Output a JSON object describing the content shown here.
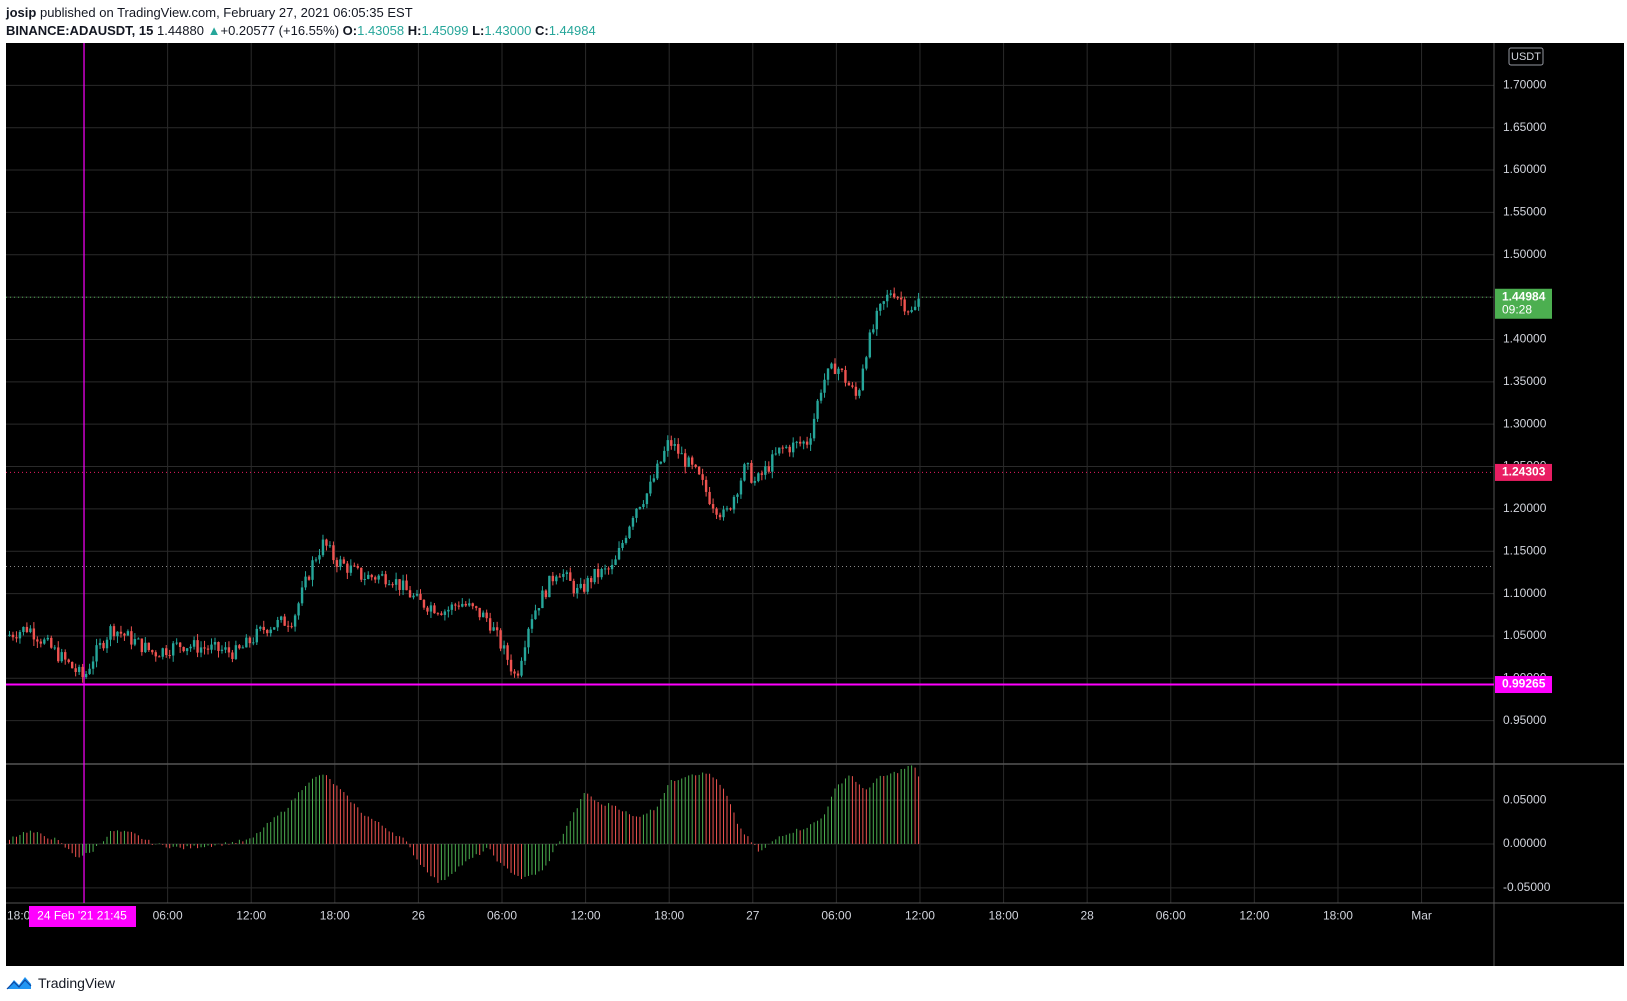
{
  "header": {
    "author": "josip",
    "published": "published on TradingView.com, February 27, 2021 06:05:35 EST",
    "symbol": "BINANCE:ADAUSDT, 15",
    "last": "1.44880",
    "change": "+0.20577 (+16.55%)",
    "o_label": "O:",
    "o": "1.43058",
    "h_label": "H:",
    "h": "1.45099",
    "l_label": "L:",
    "l": "1.43000",
    "c_label": "C:",
    "c": "1.44984"
  },
  "currency_label": "USDT",
  "footer": {
    "brand": "TradingView"
  },
  "colors": {
    "up": "#26a69a",
    "down": "#ef5350",
    "macd_up": "#4caf50",
    "macd_down": "#ef5350",
    "magenta": "#ff00ff",
    "pink": "#e91e63",
    "green_label": "#4caf50",
    "grid": "#2a2a2a",
    "axis_text": "#d1d4dc"
  },
  "chart_data": [
    {
      "type": "candlestick",
      "title": "",
      "interval": "15",
      "ylim": [
        0.9,
        1.75
      ],
      "y_ticks": [
        "0.95000",
        "1.00000",
        "1.05000",
        "1.10000",
        "1.15000",
        "1.20000",
        "1.25000",
        "1.30000",
        "1.35000",
        "1.40000",
        "1.45000",
        "1.50000",
        "1.55000",
        "1.60000",
        "1.65000",
        "1.70000"
      ],
      "y_tick_values": [
        0.95,
        1.0,
        1.05,
        1.1,
        1.15,
        1.2,
        1.25,
        1.3,
        1.35,
        1.4,
        1.45,
        1.5,
        1.55,
        1.6,
        1.65,
        1.7
      ],
      "x_ticks": [
        "18:00",
        "24 Feb '21   21:45",
        "06:00",
        "12:00",
        "18:00",
        "26",
        "06:00",
        "12:00",
        "18:00",
        "27",
        "06:00",
        "12:00",
        "18:00",
        "28",
        "06:00",
        "12:00",
        "18:00",
        "Mar"
      ],
      "x_tick_hours": [
        -6,
        0,
        6,
        12,
        18,
        24,
        30,
        36,
        42,
        48,
        54,
        60,
        66,
        72,
        78,
        84,
        90,
        96
      ],
      "x_domain_hours": [
        -5.6,
        101.2
      ],
      "price_path_hours": [
        -5.6,
        -4,
        -2,
        0,
        0.5,
        2,
        3,
        5,
        7,
        9,
        11,
        12,
        13,
        15,
        16.5,
        17.2,
        18,
        20,
        22,
        24,
        26,
        27,
        29,
        30.5,
        31,
        32,
        34,
        35.5,
        36.5,
        38,
        39.5,
        40.5,
        42,
        42.5,
        44,
        45,
        46,
        47.5,
        48.2,
        50,
        52,
        53,
        54,
        55.5,
        56,
        57,
        58,
        59.5,
        60
      ],
      "price_path_values": [
        1.05,
        1.06,
        1.03,
        1.0,
        1.02,
        1.06,
        1.05,
        1.03,
        1.04,
        1.035,
        1.03,
        1.045,
        1.06,
        1.07,
        1.14,
        1.16,
        1.14,
        1.12,
        1.12,
        1.09,
        1.08,
        1.09,
        1.07,
        1.02,
        1.0,
        1.07,
        1.13,
        1.1,
        1.12,
        1.13,
        1.2,
        1.22,
        1.28,
        1.27,
        1.24,
        1.21,
        1.19,
        1.25,
        1.23,
        1.27,
        1.28,
        1.35,
        1.37,
        1.33,
        1.38,
        1.43,
        1.46,
        1.43,
        1.45
      ],
      "reference_lines": [
        {
          "label": "1.44984",
          "sublabel": "09:28",
          "value": 1.44984,
          "color": "#4caf50"
        },
        {
          "label": "1.24303",
          "value": 1.24303,
          "color": "#e91e63"
        },
        {
          "label": "0.99265",
          "value": 0.99265,
          "color": "#ff00ff"
        }
      ],
      "horizontal_dotted_line": 1.132
    },
    {
      "type": "histogram",
      "title": "",
      "ylim": [
        -0.065,
        0.09
      ],
      "y_ticks": [
        "0.05000",
        "0.00000",
        "-0.05000"
      ],
      "y_tick_values": [
        0.05,
        0.0,
        -0.05
      ],
      "hist_hours": [
        -5.6,
        -4,
        -2,
        -0.5,
        0.5,
        2,
        3.5,
        5,
        7,
        10,
        12,
        13,
        14.5,
        16,
        17.2,
        18.5,
        20,
        21.5,
        23,
        24,
        25.5,
        27,
        29,
        30,
        31.5,
        33,
        34,
        35,
        36,
        37,
        38,
        39.5,
        41,
        42,
        43.5,
        45,
        46,
        47,
        48.5,
        50,
        52,
        53,
        54,
        55,
        56,
        57,
        58,
        59.5,
        60
      ],
      "hist_values": [
        0.005,
        0.015,
        0.005,
        -0.015,
        -0.01,
        0.015,
        0.012,
        0.0,
        -0.005,
        0.0,
        0.005,
        0.02,
        0.04,
        0.07,
        0.08,
        0.06,
        0.035,
        0.02,
        0.005,
        -0.02,
        -0.045,
        -0.025,
        -0.005,
        -0.025,
        -0.04,
        -0.03,
        0.0,
        0.03,
        0.06,
        0.045,
        0.045,
        0.03,
        0.04,
        0.07,
        0.08,
        0.08,
        0.06,
        0.02,
        -0.01,
        0.01,
        0.02,
        0.03,
        0.065,
        0.08,
        0.06,
        0.075,
        0.08,
        0.09,
        0.075
      ]
    }
  ]
}
